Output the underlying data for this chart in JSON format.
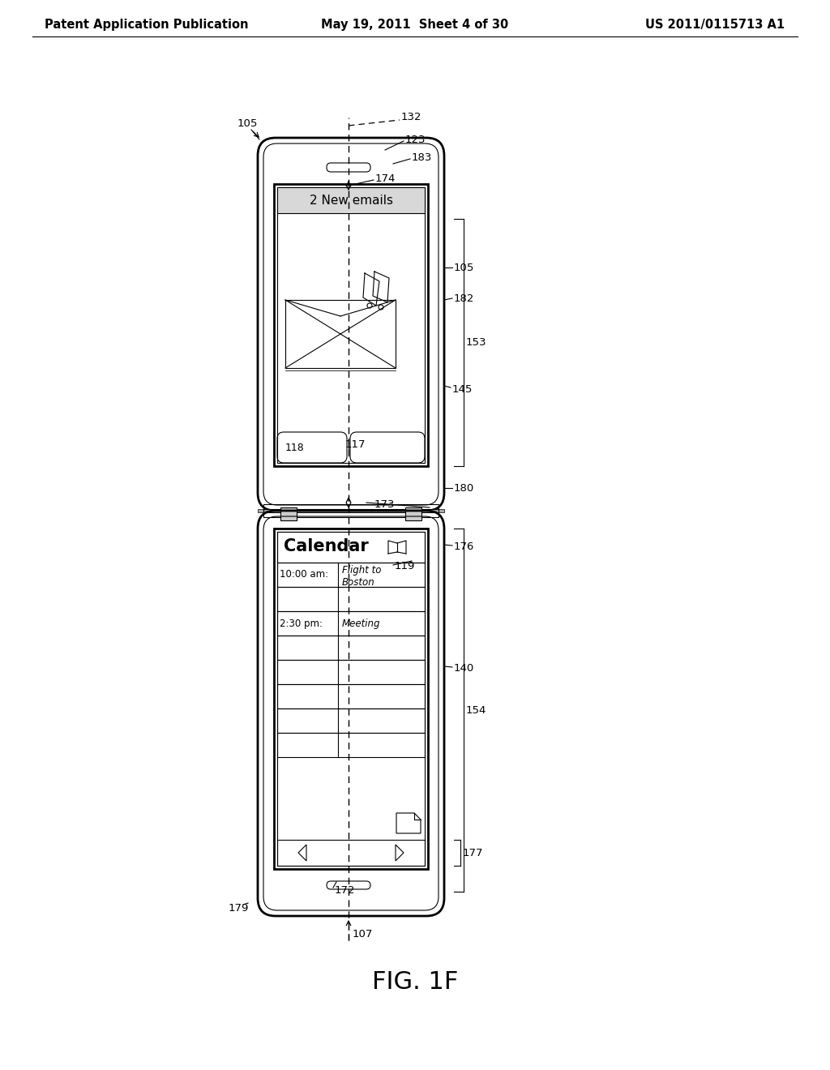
{
  "header_left": "Patent Application Publication",
  "header_mid": "May 19, 2011  Sheet 4 of 30",
  "header_right": "US 2011/0115713 A1",
  "figure_label": "FIG. 1F",
  "bg_color": "#ffffff",
  "line_color": "#000000",
  "email_title": "2 New emails",
  "calendar_title": "Calendar",
  "cal_entry1_time": "10:00 am:",
  "cal_entry1_text_l1": "Flight to",
  "cal_entry1_text_l2": "Boston",
  "cal_entry2_time": "2:30 pm:",
  "cal_entry2_text": "Meeting"
}
